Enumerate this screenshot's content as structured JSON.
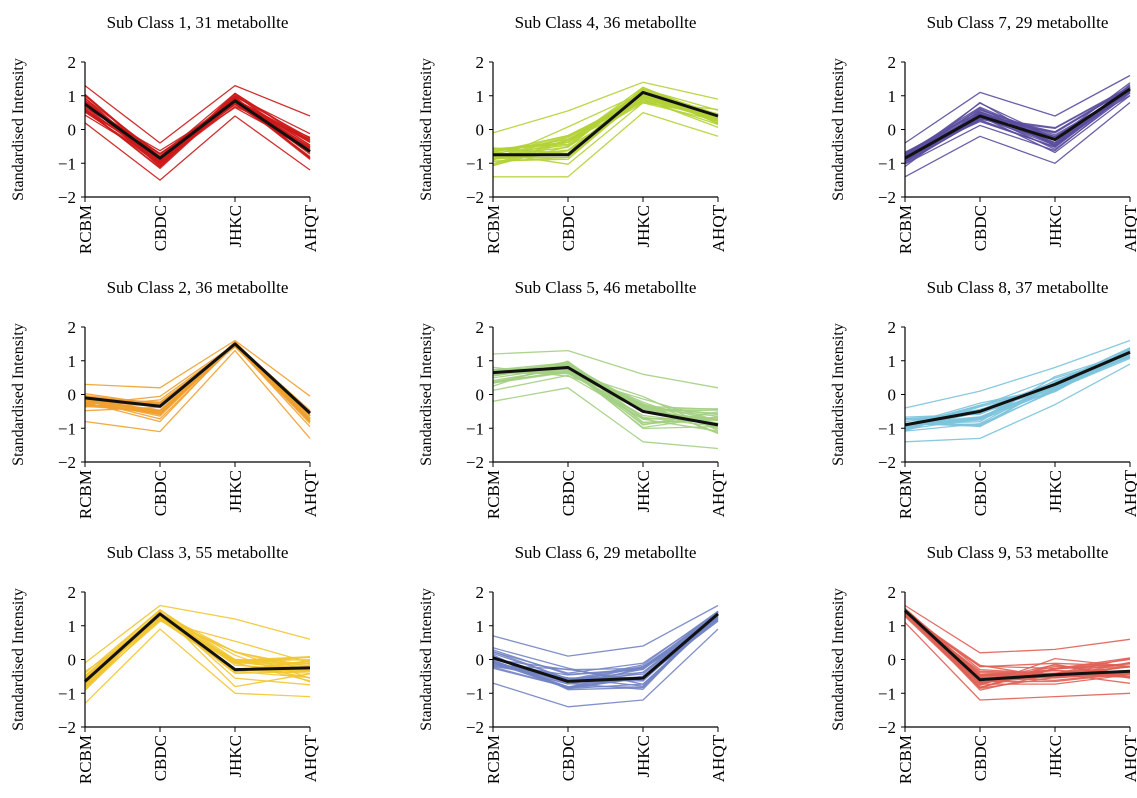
{
  "chart_data": [
    {
      "type": "line",
      "title": "Sub Class 1, 31 metabollte",
      "ylabel": "Standardised Intensity",
      "categories": [
        "RCBM",
        "CBDC",
        "JHKC",
        "AHQT"
      ],
      "yticks": [
        "2",
        "1",
        "0",
        "−1",
        "−2"
      ],
      "ylim": [
        -2,
        2
      ],
      "color": "#cc1a1a",
      "mean": [
        0.75,
        -0.85,
        0.85,
        -0.65
      ],
      "envelope_low": [
        0.2,
        -1.5,
        0.4,
        -1.2
      ],
      "envelope_high": [
        1.3,
        -0.4,
        1.3,
        0.4
      ]
    },
    {
      "type": "line",
      "title": "Sub Class 2, 36 metabollte",
      "ylabel": "Standardised Intensity",
      "categories": [
        "RCBM",
        "CBDC",
        "JHKC",
        "AHQT"
      ],
      "yticks": [
        "2",
        "1",
        "0",
        "−1",
        "−2"
      ],
      "ylim": [
        -2,
        2
      ],
      "color": "#f0a030",
      "mean": [
        -0.1,
        -0.35,
        1.5,
        -0.55
      ],
      "envelope_low": [
        -0.8,
        -1.1,
        1.3,
        -1.3
      ],
      "envelope_high": [
        0.3,
        0.2,
        1.6,
        -0.05
      ]
    },
    {
      "type": "line",
      "title": "Sub Class 3, 55 metabollte",
      "ylabel": "Standardised Intensity",
      "categories": [
        "RCBM",
        "CBDC",
        "JHKC",
        "AHQT"
      ],
      "yticks": [
        "2",
        "1",
        "0",
        "−1",
        "−2"
      ],
      "ylim": [
        -2,
        2
      ],
      "color": "#f2c530",
      "mean": [
        -0.65,
        1.35,
        -0.3,
        -0.25
      ],
      "envelope_low": [
        -1.3,
        0.9,
        -1.0,
        -1.1
      ],
      "envelope_high": [
        -0.1,
        1.6,
        1.2,
        0.6
      ]
    },
    {
      "type": "line",
      "title": "Sub Class 4, 36 metabollte",
      "ylabel": "Standardised Intensity",
      "categories": [
        "RCBM",
        "CBDC",
        "JHKC",
        "AHQT"
      ],
      "yticks": [
        "2",
        "1",
        "0",
        "−1",
        "−2"
      ],
      "ylim": [
        -2,
        2
      ],
      "color": "#b2d235",
      "mean": [
        -0.75,
        -0.75,
        1.1,
        0.4
      ],
      "envelope_low": [
        -1.4,
        -1.4,
        0.5,
        -0.2
      ],
      "envelope_high": [
        -0.1,
        0.55,
        1.4,
        0.9
      ]
    },
    {
      "type": "line",
      "title": "Sub Class 5, 46 metabollte",
      "ylabel": "Standardised Intensity",
      "categories": [
        "RCBM",
        "CBDC",
        "JHKC",
        "AHQT"
      ],
      "yticks": [
        "2",
        "1",
        "0",
        "−1",
        "−2"
      ],
      "ylim": [
        -2,
        2
      ],
      "color": "#a3cf82",
      "mean": [
        0.65,
        0.8,
        -0.5,
        -0.9
      ],
      "envelope_low": [
        -0.2,
        0.2,
        -1.4,
        -1.6
      ],
      "envelope_high": [
        1.2,
        1.3,
        0.6,
        0.2
      ]
    },
    {
      "type": "line",
      "title": "Sub Class 6, 29 metabollte",
      "ylabel": "Standardised Intensity",
      "categories": [
        "RCBM",
        "CBDC",
        "JHKC",
        "AHQT"
      ],
      "yticks": [
        "2",
        "1",
        "0",
        "−1",
        "−2"
      ],
      "ylim": [
        -2,
        2
      ],
      "color": "#7384c4",
      "mean": [
        0.05,
        -0.65,
        -0.55,
        1.35
      ],
      "envelope_low": [
        -0.7,
        -1.4,
        -1.2,
        0.9
      ],
      "envelope_high": [
        0.7,
        0.1,
        0.4,
        1.6
      ]
    },
    {
      "type": "line",
      "title": "Sub Class 7, 29 metabollte",
      "ylabel": "Standardised Intensity",
      "categories": [
        "RCBM",
        "CBDC",
        "JHKC",
        "AHQT"
      ],
      "yticks": [
        "2",
        "1",
        "0",
        "−1",
        "−2"
      ],
      "ylim": [
        -2,
        2
      ],
      "color": "#5b4e9e",
      "mean": [
        -0.85,
        0.4,
        -0.3,
        1.2
      ],
      "envelope_low": [
        -1.4,
        -0.2,
        -1.0,
        0.8
      ],
      "envelope_high": [
        -0.4,
        1.1,
        0.4,
        1.6
      ]
    },
    {
      "type": "line",
      "title": "Sub Class 8, 37 metabollte",
      "ylabel": "Standardised Intensity",
      "categories": [
        "RCBM",
        "CBDC",
        "JHKC",
        "AHQT"
      ],
      "yticks": [
        "2",
        "1",
        "0",
        "−1",
        "−2"
      ],
      "ylim": [
        -2,
        2
      ],
      "color": "#7cc3dc",
      "mean": [
        -0.9,
        -0.5,
        0.3,
        1.25
      ],
      "envelope_low": [
        -1.4,
        -1.3,
        -0.3,
        0.9
      ],
      "envelope_high": [
        -0.4,
        0.1,
        0.8,
        1.6
      ]
    },
    {
      "type": "line",
      "title": "Sub Class 9, 53 metabollte",
      "ylabel": "Standardised Intensity",
      "categories": [
        "RCBM",
        "CBDC",
        "JHKC",
        "AHQT"
      ],
      "yticks": [
        "2",
        "1",
        "0",
        "−1",
        "−2"
      ],
      "ylim": [
        -2,
        2
      ],
      "color": "#e06055",
      "mean": [
        1.45,
        -0.6,
        -0.45,
        -0.35
      ],
      "envelope_low": [
        1.1,
        -1.2,
        -1.1,
        -1.0
      ],
      "envelope_high": [
        1.6,
        0.2,
        0.3,
        0.6
      ]
    }
  ],
  "mean_line_color": "#111111"
}
